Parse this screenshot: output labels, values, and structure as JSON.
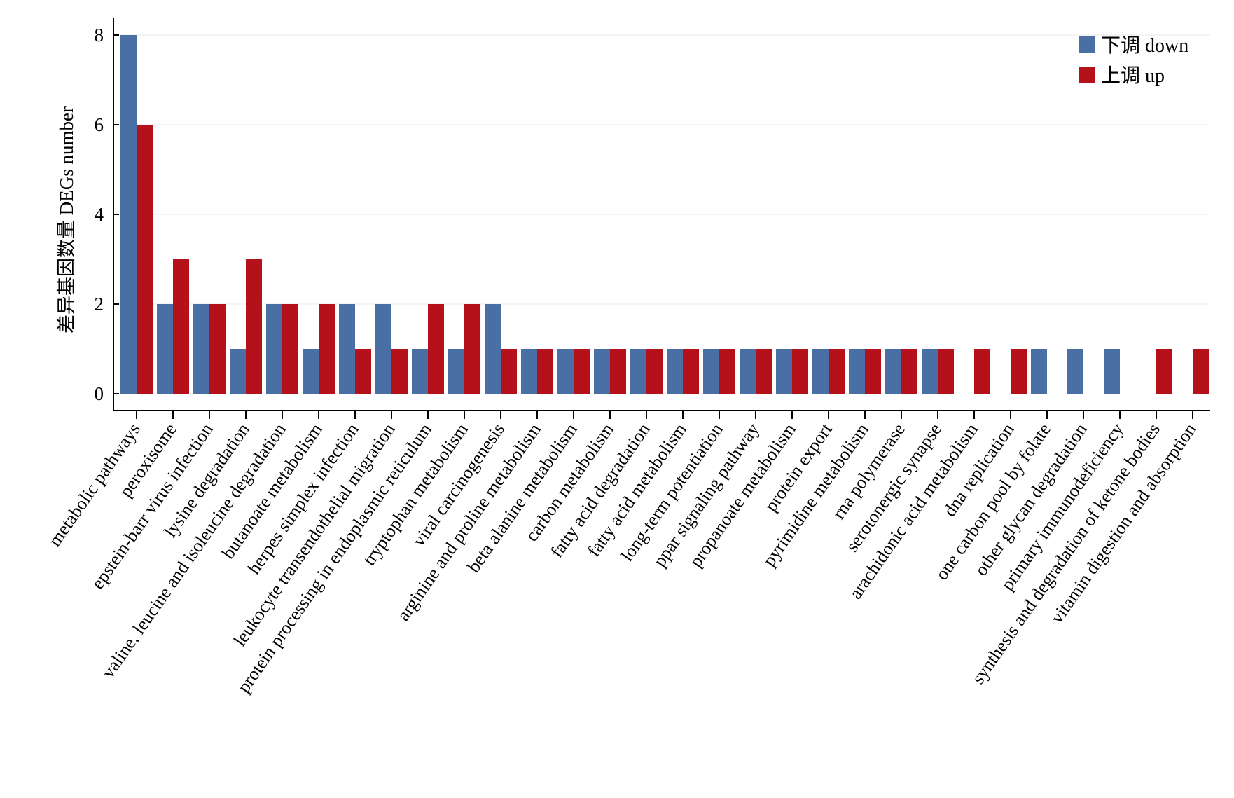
{
  "chart_data": {
    "type": "bar",
    "ylabel": "差异基因数量 DEGs number",
    "xlabel": "",
    "ylim": [
      0,
      8
    ],
    "yticks": [
      0,
      2,
      4,
      6,
      8
    ],
    "grid": "horizontal",
    "legend_position": "top-right",
    "categories": [
      "metabolic pathways",
      "peroxisome",
      "epstein-barr virus infection",
      "lysine degradation",
      "valine, leucine and isoleucine degradation",
      "butanoate metabolism",
      "herpes simplex infection",
      "leukocyte transendothelial migration",
      "protein processing in endoplasmic reticulum",
      "tryptophan metabolism",
      "viral carcinogenesis",
      "arginine and proline metabolism",
      "beta alanine metabolism",
      "carbon metabolism",
      "fatty acid degradation",
      "fatty acid metabolism",
      "long-term potentiation",
      "ppar signaling pathway",
      "propanoate metabolism",
      "protein export",
      "pyrimidine metabolism",
      "rna polymerase",
      "serotonergic synapse",
      "arachidonic acid metabolism",
      "dna replication",
      "one carbon pool by folate",
      "other glycan degradation",
      "primary immunodeficiency",
      "synthesis and degradation of ketone bodies",
      "vitamin digestion and absorption"
    ],
    "series": [
      {
        "name": "下调 down",
        "color": "#4a6fa5",
        "values": [
          8,
          2,
          2,
          1,
          2,
          1,
          2,
          2,
          1,
          1,
          2,
          1,
          1,
          1,
          1,
          1,
          1,
          1,
          1,
          1,
          1,
          1,
          1,
          0,
          0,
          1,
          1,
          1,
          0,
          0
        ]
      },
      {
        "name": "上调 up",
        "color": "#b5111b",
        "values": [
          6,
          3,
          2,
          3,
          2,
          2,
          1,
          1,
          2,
          2,
          1,
          1,
          1,
          1,
          1,
          1,
          1,
          1,
          1,
          1,
          1,
          1,
          1,
          1,
          1,
          0,
          0,
          0,
          1,
          1
        ]
      }
    ]
  }
}
